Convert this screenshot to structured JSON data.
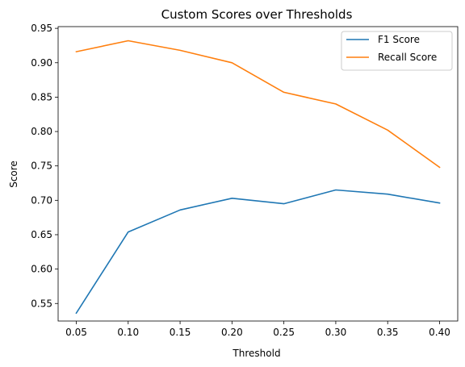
{
  "chart_data": {
    "type": "line",
    "title": "Custom Scores over Thresholds",
    "xlabel": "Threshold",
    "ylabel": "Score",
    "x": [
      0.05,
      0.1,
      0.15,
      0.2,
      0.25,
      0.3,
      0.35,
      0.4
    ],
    "x_tick_labels": [
      "0.05",
      "0.10",
      "0.15",
      "0.20",
      "0.25",
      "0.30",
      "0.35",
      "0.40"
    ],
    "y_ticks": [
      0.55,
      0.6,
      0.65,
      0.7,
      0.75,
      0.8,
      0.85,
      0.9,
      0.95
    ],
    "y_tick_labels": [
      "0.55",
      "0.60",
      "0.65",
      "0.70",
      "0.75",
      "0.80",
      "0.85",
      "0.90",
      "0.95"
    ],
    "xlim": [
      0.0325,
      0.4175
    ],
    "ylim": [
      0.5245,
      0.9525
    ],
    "grid": false,
    "legend_position": "upper right",
    "series": [
      {
        "name": "F1 Score",
        "color": "#1f77b4",
        "values": [
          0.536,
          0.654,
          0.686,
          0.703,
          0.695,
          0.715,
          0.709,
          0.696
        ]
      },
      {
        "name": "Recall Score",
        "color": "#ff7f0e",
        "values": [
          0.916,
          0.932,
          0.918,
          0.9,
          0.857,
          0.84,
          0.802,
          0.748
        ]
      }
    ]
  }
}
